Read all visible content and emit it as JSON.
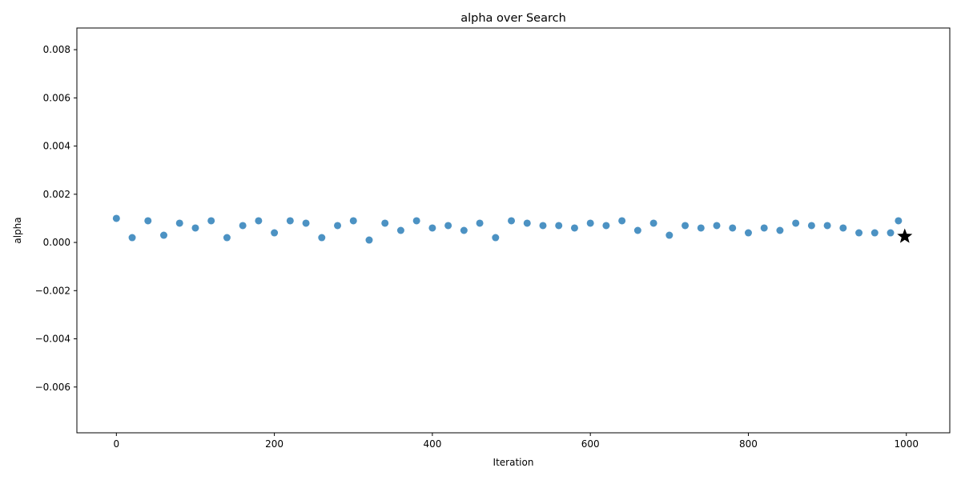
{
  "chart_data": {
    "type": "scatter",
    "title": "alpha over Search",
    "xlabel": "Iteration",
    "ylabel": "alpha",
    "xlim": [
      -50,
      1055
    ],
    "ylim": [
      -0.0079,
      0.0089
    ],
    "xticks": [
      0,
      200,
      400,
      600,
      800,
      1000
    ],
    "xtick_labels": [
      "0",
      "200",
      "400",
      "600",
      "800",
      "1000"
    ],
    "yticks": [
      -0.006,
      -0.004,
      -0.002,
      0.0,
      0.002,
      0.004,
      0.006,
      0.008
    ],
    "ytick_labels": [
      "−0.006",
      "−0.004",
      "−0.002",
      "0.000",
      "0.002",
      "0.004",
      "0.006",
      "0.008"
    ],
    "grid": false,
    "colors": {
      "points": "#1f77b4",
      "best_marker": "#000000"
    },
    "series": [
      {
        "marker": "circle",
        "x": [
          0,
          20,
          40,
          60,
          80,
          100,
          120,
          140,
          160,
          180,
          200,
          220,
          240,
          260,
          280,
          300,
          320,
          340,
          360,
          380,
          400,
          420,
          440,
          460,
          480,
          500,
          520,
          540,
          560,
          580,
          600,
          620,
          640,
          660,
          680,
          700,
          720,
          740,
          760,
          780,
          800,
          820,
          840,
          860,
          880,
          900,
          920,
          940,
          960,
          980,
          990
        ],
        "y": [
          0.001,
          0.0002,
          0.0009,
          0.0003,
          0.0008,
          0.0006,
          0.0009,
          0.0002,
          0.0007,
          0.0009,
          0.0004,
          0.0009,
          0.0008,
          0.0002,
          0.0007,
          0.0009,
          0.0001,
          0.0008,
          0.0005,
          0.0009,
          0.0006,
          0.0007,
          0.0005,
          0.0008,
          0.0002,
          0.0009,
          0.0008,
          0.0007,
          0.0007,
          0.0006,
          0.0008,
          0.0007,
          0.0009,
          0.0005,
          0.0008,
          0.0003,
          0.0007,
          0.0006,
          0.0007,
          0.0006,
          0.0004,
          0.0006,
          0.0005,
          0.0008,
          0.0007,
          0.0007,
          0.0006,
          0.0004,
          0.0004,
          0.0004,
          0.0009
        ]
      },
      {
        "marker": "star",
        "x": [
          998
        ],
        "y": [
          0.00025
        ]
      }
    ]
  }
}
